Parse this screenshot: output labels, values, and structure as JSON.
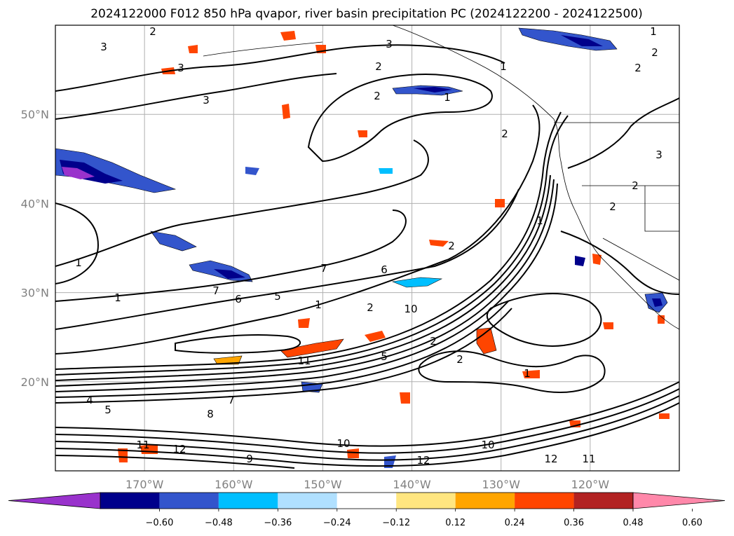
{
  "chart_data": {
    "type": "heatmap",
    "title": "2024122000 F012 850 hPa qvapor, river basin precipitation PC (2024122200 - 2024122500)",
    "lon_ticks": [
      "170°W",
      "160°W",
      "150°W",
      "140°W",
      "130°W",
      "120°W"
    ],
    "lat_ticks": [
      "50°N",
      "40°N",
      "30°N",
      "20°N"
    ],
    "lon_range": [
      -180,
      -110
    ],
    "lat_range": [
      10,
      60
    ],
    "grid": true,
    "colorbar": {
      "orientation": "horizontal",
      "extend": "both",
      "levels": [
        -0.72,
        -0.6,
        -0.48,
        -0.36,
        -0.24,
        -0.12,
        0.12,
        0.24,
        0.36,
        0.48,
        0.6,
        0.72
      ],
      "tick_labels": [
        "−0.60",
        "−0.48",
        "−0.36",
        "−0.24",
        "−0.12",
        "0.12",
        "0.24",
        "0.36",
        "0.48",
        "0.60"
      ],
      "colors": [
        "#9932cc",
        "#00008b",
        "#3355cc",
        "#00bfff",
        "#b0e0ff",
        "#ffffff",
        "#ffe680",
        "#ffa500",
        "#ff4500",
        "#b22222",
        "#ff88aa"
      ]
    },
    "contour_labels": [
      "2",
      "3",
      "2",
      "3",
      "2",
      "3",
      "2",
      "1",
      "1",
      "1",
      "2",
      "1",
      "3",
      "3",
      "2",
      "6",
      "7",
      "7",
      "6",
      "1",
      "5",
      "10",
      "2",
      "5",
      "11",
      "2",
      "1",
      "2",
      "4",
      "5",
      "8",
      "7",
      "12",
      "11",
      "12",
      "10",
      "9",
      "10",
      "12",
      "11",
      "1",
      "2",
      "2",
      "2",
      "1"
    ]
  }
}
